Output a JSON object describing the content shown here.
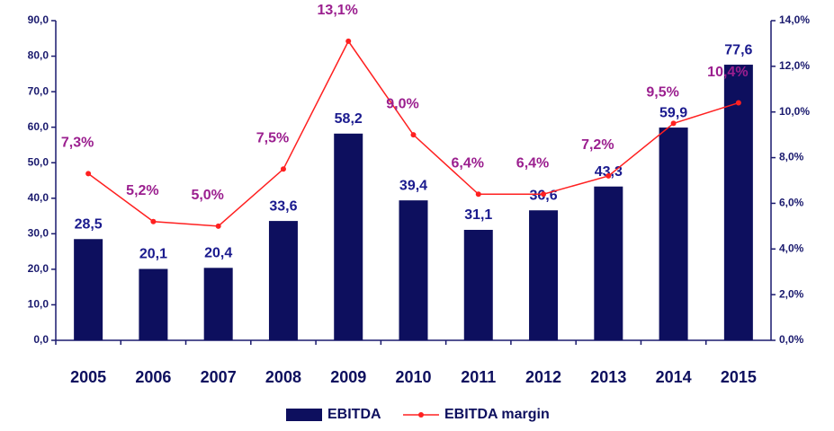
{
  "chart_data": {
    "type": "bar",
    "categories": [
      "2005",
      "2006",
      "2007",
      "2008",
      "2009",
      "2010",
      "2011",
      "2012",
      "2013",
      "2014",
      "2015"
    ],
    "series": [
      {
        "name": "EBITDA",
        "type": "bar",
        "color": "#0d0f5e",
        "values": [
          28.5,
          20.1,
          20.4,
          33.6,
          58.2,
          39.4,
          31.1,
          36.6,
          43.3,
          59.9,
          77.6
        ],
        "value_labels": [
          "28,5",
          "20,1",
          "20,4",
          "33,6",
          "58,2",
          "39,4",
          "31,1",
          "36,6",
          "43,3",
          "59,9",
          "77,6"
        ]
      },
      {
        "name": "EBITDA margin",
        "type": "line",
        "axis": "y2",
        "color": "#ff2020",
        "values": [
          7.3,
          5.2,
          5.0,
          7.5,
          13.1,
          9.0,
          6.4,
          6.4,
          7.2,
          9.5,
          10.4
        ],
        "value_labels": [
          "7,3%",
          "5,2%",
          "5,0%",
          "7,5%",
          "13,1%",
          "9,0%",
          "6,4%",
          "6,4%",
          "7,2%",
          "9,5%",
          "10,4%"
        ]
      }
    ],
    "ylim": [
      0,
      90
    ],
    "yticks": [
      {
        "value": 0,
        "label": "0,0"
      },
      {
        "value": 10,
        "label": "10,0"
      },
      {
        "value": 20,
        "label": "20,0"
      },
      {
        "value": 30,
        "label": "30,0"
      },
      {
        "value": 40,
        "label": "40,0"
      },
      {
        "value": 50,
        "label": "50,0"
      },
      {
        "value": 60,
        "label": "60,0"
      },
      {
        "value": 70,
        "label": "70,0"
      },
      {
        "value": 80,
        "label": "80,0"
      },
      {
        "value": 90,
        "label": "90,0"
      }
    ],
    "y2lim": [
      0,
      14
    ],
    "y2ticks": [
      {
        "value": 0,
        "label": "0,0%"
      },
      {
        "value": 2,
        "label": "2,0%"
      },
      {
        "value": 4,
        "label": "4,0%"
      },
      {
        "value": 6,
        "label": "6,0%"
      },
      {
        "value": 8,
        "label": "8,0%"
      },
      {
        "value": 10,
        "label": "10,0%"
      },
      {
        "value": 12,
        "label": "12,0%"
      },
      {
        "value": 14,
        "label": "14,0%"
      }
    ],
    "legend": "bottom"
  }
}
